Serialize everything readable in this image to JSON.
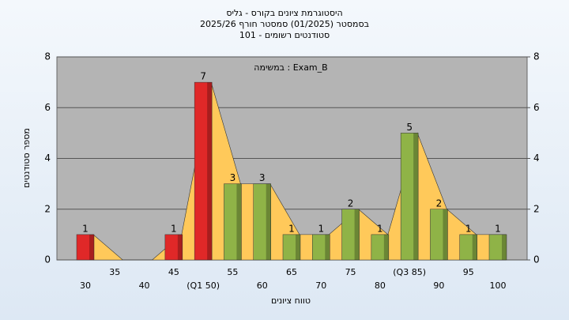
{
  "chart_data": {
    "type": "bar",
    "title": [
      "היסטוגרמת ציונים בקורס - גליס",
      "בסמסטר  (01/2025)  סמסטר חורף 2025/26",
      "סטודנטים רשומים - 101"
    ],
    "annotation": "במשימה : Exam_B",
    "x_label": "טווח ציונים",
    "y_label": "מספר סטודנטים",
    "categories": [
      "30",
      "35",
      "40",
      "45",
      "(Q1 50)",
      "55",
      "60",
      "65",
      "70",
      "75",
      "80",
      "(Q3 85)",
      "90",
      "95",
      "100"
    ],
    "values": [
      1,
      0,
      0,
      1,
      7,
      3,
      3,
      1,
      1,
      2,
      1,
      5,
      2,
      1,
      1
    ],
    "value_labels": [
      "1",
      null,
      null,
      "1",
      "7",
      "3",
      "3",
      "1",
      "1",
      "2",
      "1",
      "5",
      "2",
      "1",
      "1"
    ],
    "colors": [
      "#e02828",
      "#e02828",
      "#e02828",
      "#e02828",
      "#e02828",
      "#8fb347",
      "#8fb347",
      "#8fb347",
      "#8fb347",
      "#8fb347",
      "#8fb347",
      "#8fb347",
      "#8fb347",
      "#8fb347",
      "#8fb347"
    ],
    "area_color": "#ffc95a",
    "ylim": [
      0,
      8
    ],
    "yticks": [
      0,
      2,
      4,
      6,
      8
    ],
    "y2lim": [
      0,
      8
    ],
    "y2ticks": [
      0,
      2,
      4,
      6,
      8
    ],
    "grid": true
  }
}
